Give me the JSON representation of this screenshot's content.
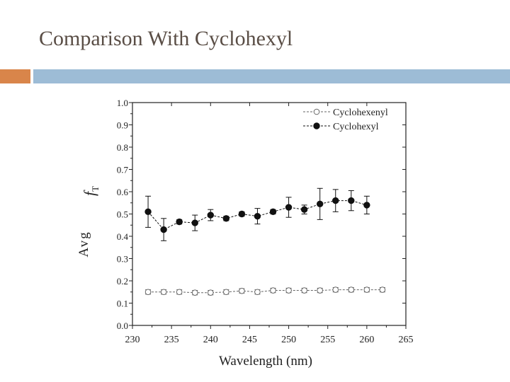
{
  "slide": {
    "title": "Comparison With Cyclohexyl",
    "colors": {
      "accent_bar": "#d9854a",
      "main_bar": "#9dbcd6",
      "title": "#5a4e46"
    }
  },
  "chart_data": {
    "type": "scatter",
    "title": "",
    "xlabel": "Wavelength (nm)",
    "ylabel_symbol": "f",
    "ylabel_subscript": "T",
    "ylabel_avg": "Avg",
    "xlim": [
      230,
      265
    ],
    "ylim": [
      0.0,
      1.0
    ],
    "xticks": [
      230,
      235,
      240,
      245,
      250,
      255,
      260,
      265
    ],
    "xtick_labels": [
      "230",
      "235",
      "240",
      "245",
      "250",
      "255",
      "260",
      "265"
    ],
    "yticks": [
      0.0,
      0.1,
      0.2,
      0.3,
      0.4,
      0.5,
      0.6,
      0.7,
      0.8,
      0.9,
      1.0
    ],
    "ytick_labels": [
      "0.0",
      "0.1",
      "0.2",
      "0.3",
      "0.4",
      "0.5",
      "0.6",
      "0.7",
      "0.8",
      "0.9",
      "1.0"
    ],
    "legend_position": "top-right",
    "series": [
      {
        "name": "Cyclohexenyl",
        "marker": "open-circle",
        "x": [
          232,
          234,
          236,
          238,
          240,
          242,
          244,
          246,
          248,
          250,
          252,
          254,
          256,
          258,
          260,
          262
        ],
        "y": [
          0.15,
          0.15,
          0.15,
          0.147,
          0.147,
          0.15,
          0.155,
          0.15,
          0.157,
          0.157,
          0.157,
          0.157,
          0.16,
          0.16,
          0.16,
          0.16
        ],
        "err": [
          0.01,
          0.01,
          0.01,
          0.01,
          0.01,
          0.01,
          0.01,
          0.01,
          0.01,
          0.01,
          0.01,
          0.01,
          0.01,
          0.01,
          0.01,
          0.01
        ]
      },
      {
        "name": "Cyclohexyl",
        "marker": "filled-circle",
        "x": [
          232,
          234,
          236,
          238,
          240,
          242,
          244,
          246,
          248,
          250,
          252,
          254,
          256,
          258,
          260
        ],
        "y": [
          0.51,
          0.43,
          0.465,
          0.46,
          0.495,
          0.48,
          0.5,
          0.49,
          0.51,
          0.53,
          0.52,
          0.545,
          0.56,
          0.56,
          0.54
        ],
        "err": [
          0.07,
          0.05,
          0.01,
          0.035,
          0.025,
          0.01,
          0.01,
          0.035,
          0.01,
          0.045,
          0.02,
          0.07,
          0.05,
          0.045,
          0.04
        ]
      }
    ]
  }
}
